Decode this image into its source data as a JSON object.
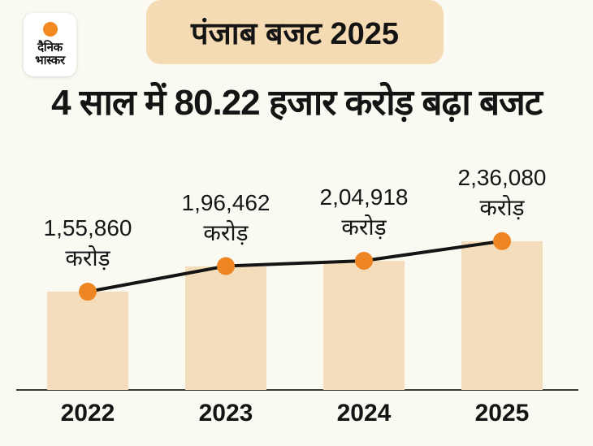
{
  "logo": {
    "line1": "दैनिक",
    "line2": "भास्कर",
    "dot_color": "#f08a21"
  },
  "badge": {
    "label": "पंजाब बजट 2025",
    "background": "#f5dbb3"
  },
  "headline": "4 साल में 80.22 हजार करोड़ बढ़ा बजट",
  "chart_data": {
    "type": "bar",
    "overlay": "line+markers",
    "title": "पंजाब बजट 2025",
    "subtitle": "4 साल में 80.22 हजार करोड़ बढ़ा बजट",
    "categories": [
      "2022",
      "2023",
      "2024",
      "2025"
    ],
    "values": [
      155860,
      196462,
      204918,
      236080
    ],
    "value_labels": [
      "1,55,860",
      "1,96,462",
      "2,04,918",
      "2,36,080"
    ],
    "unit_label": "करोड़",
    "ylim": [
      0,
      250000
    ],
    "grid": false,
    "legend": "none",
    "bar_color": "#f4ddba",
    "dot_color": "#ee8523",
    "line_color": "#141414",
    "axis_color": "#3a3a3a",
    "background_color": "#faf9f2"
  }
}
